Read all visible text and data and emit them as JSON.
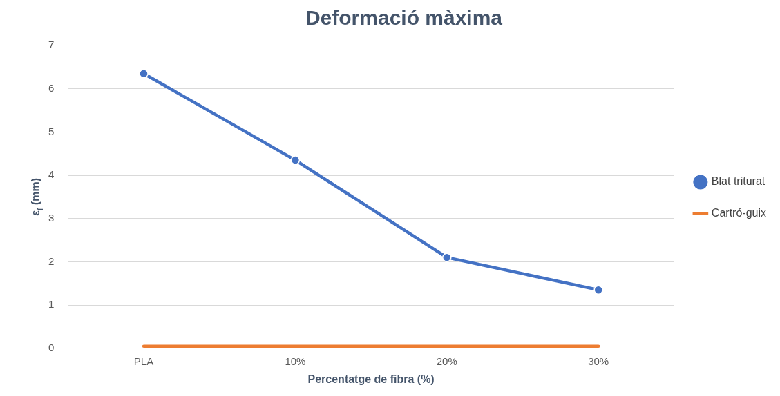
{
  "chart_data": {
    "type": "line",
    "title": "Deformació màxima",
    "xlabel": "Percentatge de fibra (%)",
    "ylabel": "ε$_{f}$ (mm)",
    "categories": [
      "PLA",
      "10%",
      "20%",
      "30%"
    ],
    "series": [
      {
        "name": "Blat triturat",
        "color": "#4472c4",
        "values": [
          6.35,
          4.35,
          2.1,
          1.35
        ],
        "marker": "circle"
      },
      {
        "name": "Cartró-guix",
        "color": "#ed7d31",
        "values": [
          0.05,
          0.05,
          0.05,
          0.05
        ],
        "marker": "none"
      }
    ],
    "ylim": [
      0,
      7
    ],
    "yticks": [
      0,
      1,
      2,
      3,
      4,
      5,
      6,
      7
    ],
    "grid": "y",
    "legend": "right",
    "line_style": "solid"
  }
}
